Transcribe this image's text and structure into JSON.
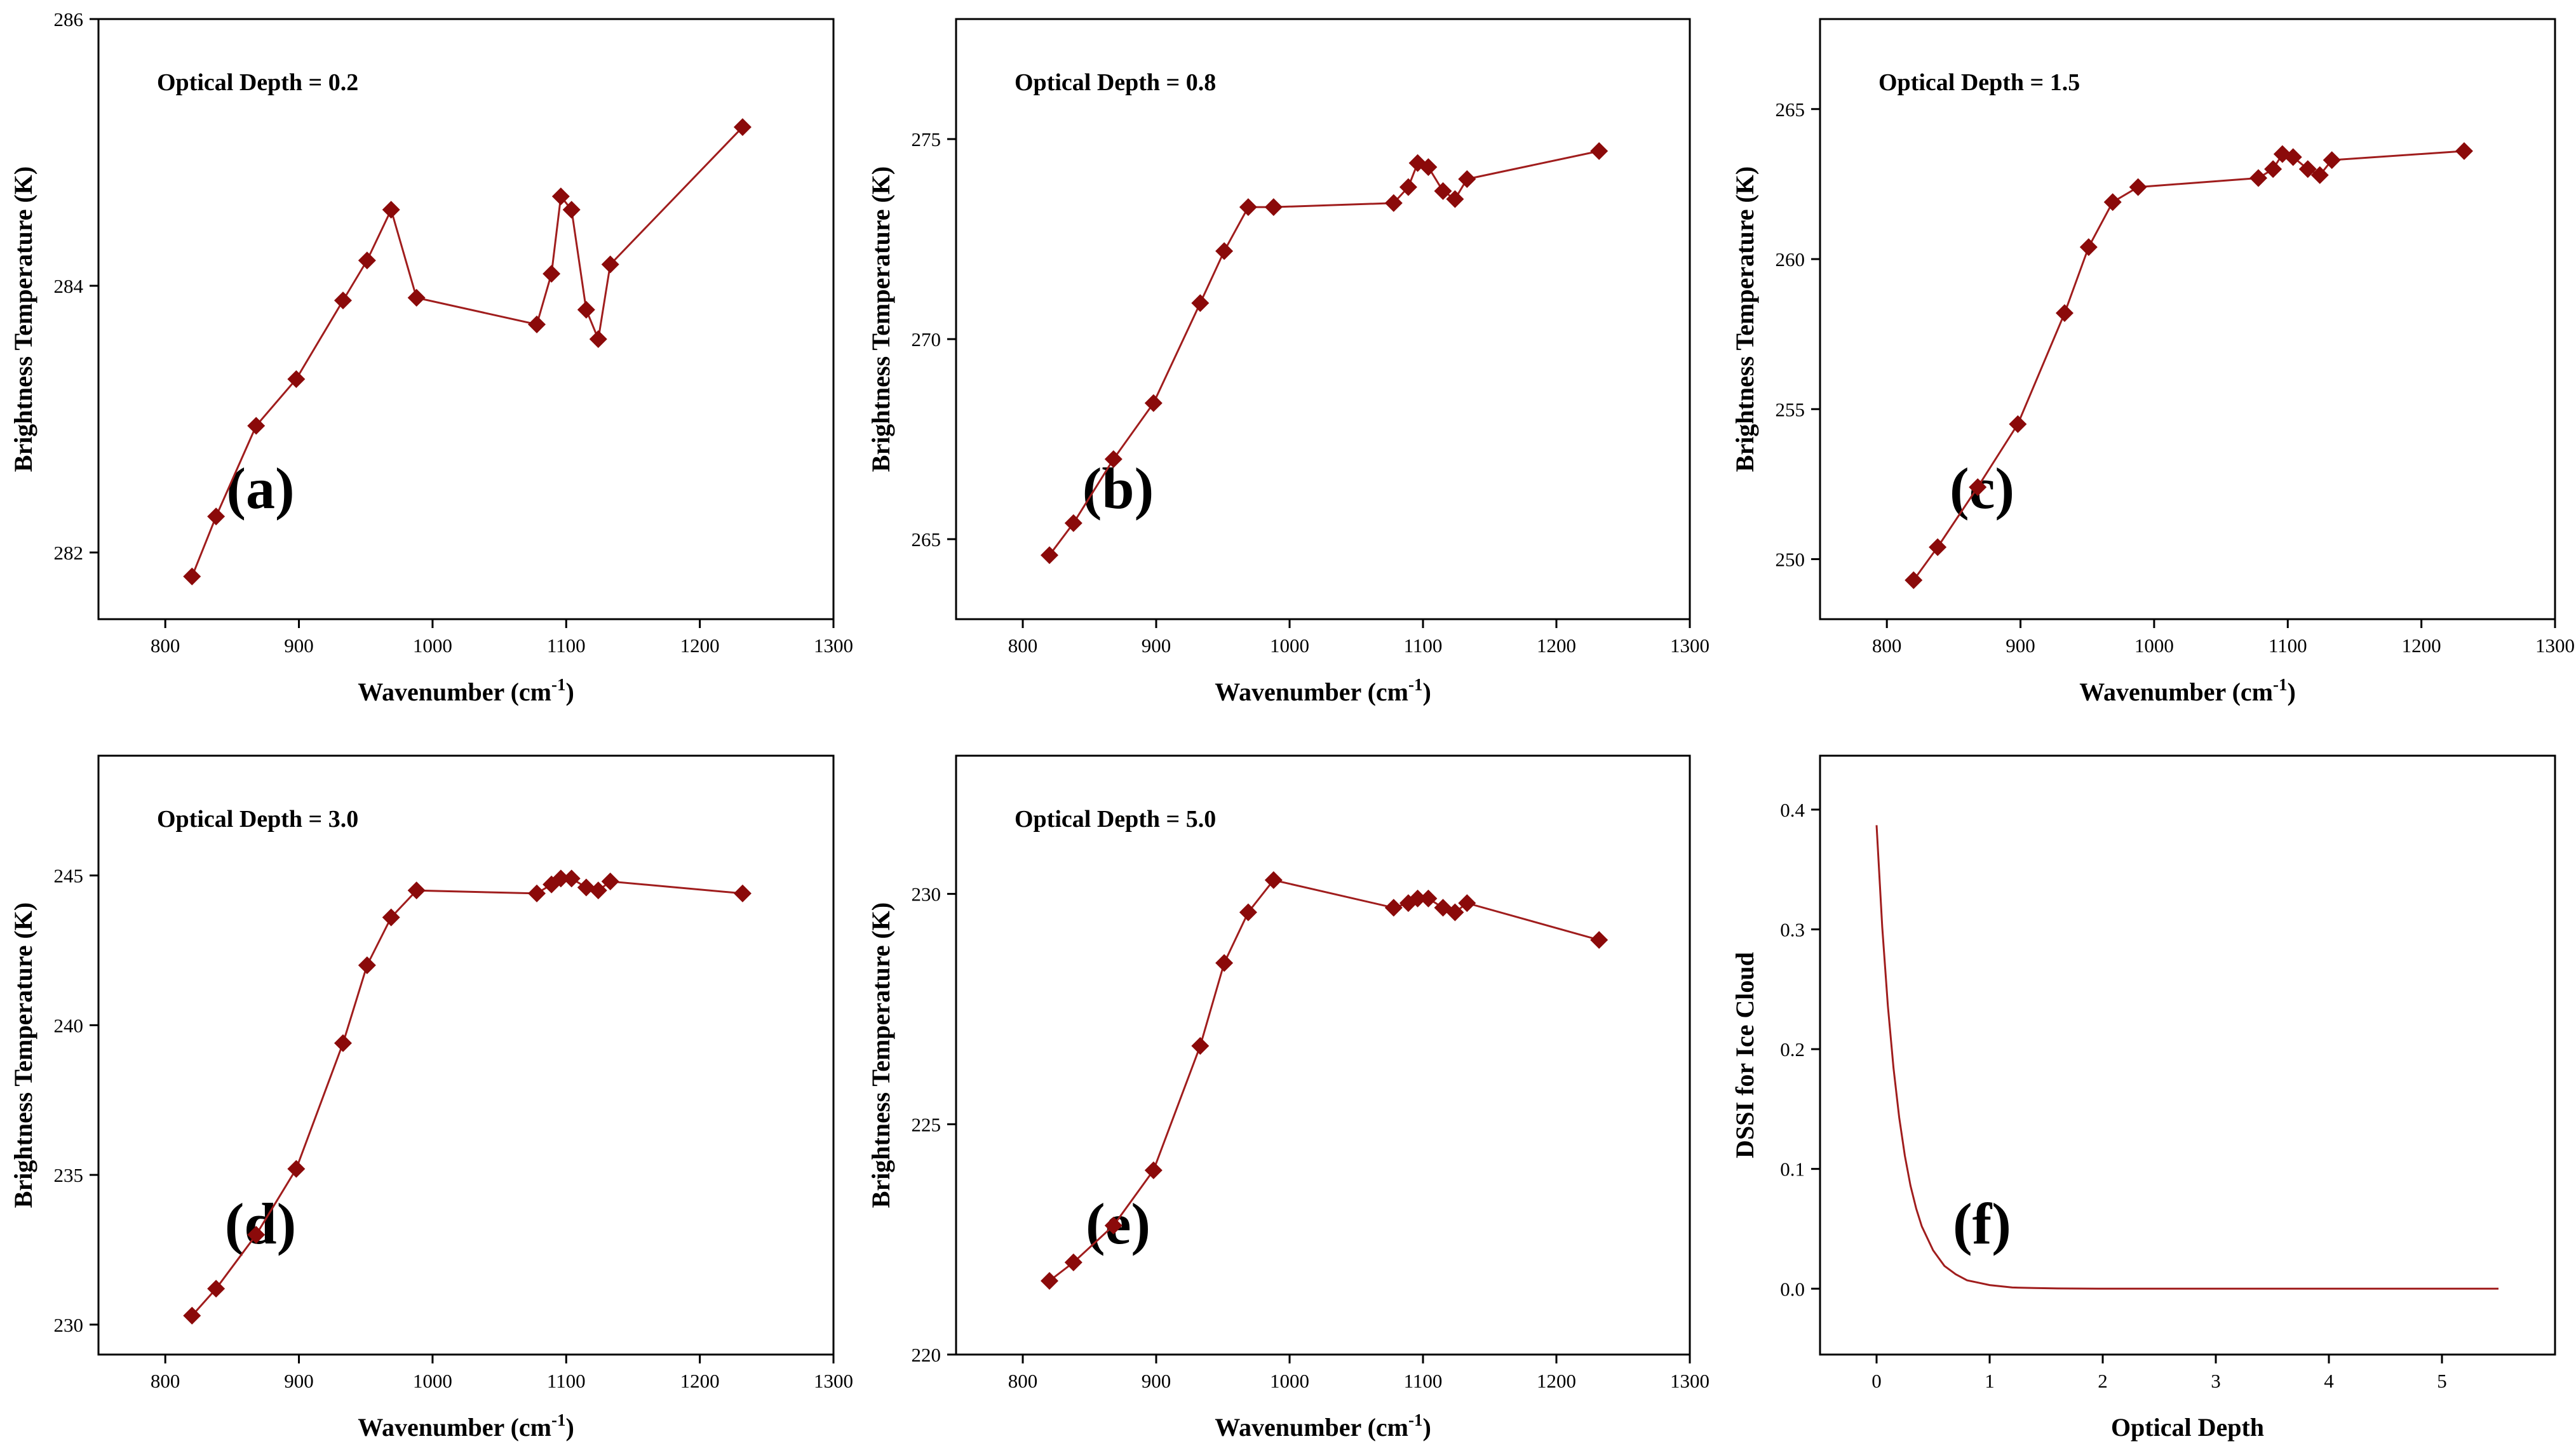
{
  "figure": {
    "series_color": "#a01d1d",
    "marker_color": "#8b0a0a",
    "marker_shape": "diamond-icon"
  },
  "chart_data": [
    {
      "type": "line",
      "panel": "(a)",
      "annotation": "Optical Depth = 0.2",
      "xlabel": "Wavenumber (cm",
      "xlabel_sup": "-1",
      "xlabel_close": ")",
      "ylabel": "Brightness Temperature (K)",
      "xlim": [
        750,
        1300
      ],
      "ylim": [
        281.5,
        286
      ],
      "xticks": [
        800,
        900,
        1000,
        1100,
        1200,
        1300
      ],
      "xtick_labels": [
        "800",
        "900",
        "1000",
        "1100",
        "1200",
        "1300"
      ],
      "yticks": [
        282,
        284,
        286
      ],
      "ytick_labels": [
        "282",
        "284",
        "286"
      ],
      "x": [
        820,
        838,
        868,
        898,
        933,
        951,
        969,
        988,
        1078,
        1089,
        1096,
        1104,
        1115,
        1124,
        1133,
        1232
      ],
      "y": [
        281.82,
        282.27,
        282.95,
        283.3,
        283.89,
        284.19,
        284.57,
        283.91,
        283.71,
        284.09,
        284.67,
        284.57,
        283.82,
        283.6,
        284.16,
        285.19
      ]
    },
    {
      "type": "line",
      "panel": "(b)",
      "annotation": "Optical Depth = 0.8",
      "xlabel": "Wavenumber (cm",
      "xlabel_sup": "-1",
      "xlabel_close": ")",
      "ylabel": "Brightness Temperature (K)",
      "xlim": [
        750,
        1300
      ],
      "ylim": [
        263,
        278
      ],
      "xticks": [
        800,
        900,
        1000,
        1100,
        1200,
        1300
      ],
      "xtick_labels": [
        "800",
        "900",
        "1000",
        "1100",
        "1200",
        "1300"
      ],
      "yticks": [
        265,
        270,
        275
      ],
      "ytick_labels": [
        "265",
        "270",
        "275"
      ],
      "x": [
        820,
        838,
        868,
        898,
        933,
        951,
        969,
        988,
        1078,
        1089,
        1096,
        1104,
        1115,
        1124,
        1133,
        1232
      ],
      "y": [
        264.6,
        265.4,
        267.0,
        268.4,
        270.9,
        272.2,
        273.3,
        273.3,
        273.4,
        273.8,
        274.4,
        274.3,
        273.7,
        273.5,
        274.0,
        274.7
      ]
    },
    {
      "type": "line",
      "panel": "(c)",
      "annotation": "Optical Depth = 1.5",
      "xlabel": "Wavenumber (cm",
      "xlabel_sup": "-1",
      "xlabel_close": ")",
      "ylabel": "Brightness Temperature (K)",
      "xlim": [
        750,
        1300
      ],
      "ylim": [
        248,
        268
      ],
      "xticks": [
        800,
        900,
        1000,
        1100,
        1200,
        1300
      ],
      "xtick_labels": [
        "800",
        "900",
        "1000",
        "1100",
        "1200",
        "1300"
      ],
      "yticks": [
        250,
        255,
        260,
        265
      ],
      "ytick_labels": [
        "250",
        "255",
        "260",
        "265"
      ],
      "x": [
        820,
        838,
        868,
        898,
        933,
        951,
        969,
        988,
        1078,
        1089,
        1096,
        1104,
        1115,
        1124,
        1133,
        1232
      ],
      "y": [
        249.3,
        250.4,
        252.4,
        254.5,
        258.2,
        260.4,
        261.9,
        262.4,
        262.7,
        263.0,
        263.5,
        263.4,
        263.0,
        262.8,
        263.3,
        263.6
      ]
    },
    {
      "type": "line",
      "panel": "(d)",
      "annotation": "Optical Depth = 3.0",
      "xlabel": "Wavenumber (cm",
      "xlabel_sup": "-1",
      "xlabel_close": ")",
      "ylabel": "Brightness Temperature (K)",
      "xlim": [
        750,
        1300
      ],
      "ylim": [
        229,
        249
      ],
      "xticks": [
        800,
        900,
        1000,
        1100,
        1200,
        1300
      ],
      "xtick_labels": [
        "800",
        "900",
        "1000",
        "1100",
        "1200",
        "1300"
      ],
      "yticks": [
        230,
        235,
        240,
        245
      ],
      "ytick_labels": [
        "230",
        "235",
        "240",
        "245"
      ],
      "x": [
        820,
        838,
        868,
        898,
        933,
        951,
        969,
        988,
        1078,
        1089,
        1096,
        1104,
        1115,
        1124,
        1133,
        1232
      ],
      "y": [
        230.3,
        231.2,
        233.0,
        235.2,
        239.4,
        242.0,
        243.6,
        244.5,
        244.4,
        244.7,
        244.9,
        244.9,
        244.6,
        244.5,
        244.8,
        244.4
      ]
    },
    {
      "type": "line",
      "panel": "(e)",
      "annotation": "Optical Depth = 5.0",
      "xlabel": "Wavenumber (cm",
      "xlabel_sup": "-1",
      "xlabel_close": ")",
      "ylabel": "Brightness Temperature (K)",
      "xlim": [
        750,
        1300
      ],
      "ylim": [
        220,
        233
      ],
      "xticks": [
        800,
        900,
        1000,
        1100,
        1200,
        1300
      ],
      "xtick_labels": [
        "800",
        "900",
        "1000",
        "1100",
        "1200",
        "1300"
      ],
      "yticks": [
        220,
        225,
        230
      ],
      "ytick_labels": [
        "220",
        "225",
        "230"
      ],
      "x": [
        820,
        838,
        868,
        898,
        933,
        951,
        969,
        988,
        1078,
        1089,
        1096,
        1104,
        1115,
        1124,
        1133,
        1232
      ],
      "y": [
        221.6,
        222.0,
        222.8,
        224.0,
        226.7,
        228.5,
        229.6,
        230.3,
        229.7,
        229.8,
        229.9,
        229.9,
        229.7,
        229.6,
        229.8,
        229.0
      ]
    },
    {
      "type": "line",
      "panel": "(f)",
      "annotation": "",
      "xlabel": "Optical Depth",
      "xlabel_sup": "",
      "xlabel_close": "",
      "ylabel": "DSSI for Ice Cloud",
      "xlim": [
        -0.5,
        6
      ],
      "ylim": [
        -0.055,
        0.445
      ],
      "xticks": [
        0,
        1,
        2,
        3,
        4,
        5
      ],
      "xtick_labels": [
        "0",
        "1",
        "2",
        "3",
        "4",
        "5"
      ],
      "yticks": [
        0.0,
        0.1,
        0.2,
        0.3,
        0.4
      ],
      "ytick_labels": [
        "0.0",
        "0.1",
        "0.2",
        "0.3",
        "0.4"
      ],
      "markers": false,
      "x": [
        0.0,
        0.05,
        0.1,
        0.15,
        0.2,
        0.25,
        0.3,
        0.35,
        0.4,
        0.5,
        0.6,
        0.7,
        0.8,
        0.9,
        1.0,
        1.1,
        1.2,
        1.4,
        1.6,
        2.0,
        2.5,
        3.0,
        3.5,
        4.0,
        4.5,
        5.0,
        5.5
      ],
      "y": [
        0.387,
        0.302,
        0.236,
        0.184,
        0.143,
        0.111,
        0.086,
        0.067,
        0.052,
        0.032,
        0.019,
        0.012,
        0.007,
        0.005,
        0.003,
        0.002,
        0.001,
        0.0005,
        0.0002,
        0.0,
        0.0,
        0.0,
        0.0,
        0.0,
        0.0,
        0.0,
        0.0
      ]
    }
  ]
}
